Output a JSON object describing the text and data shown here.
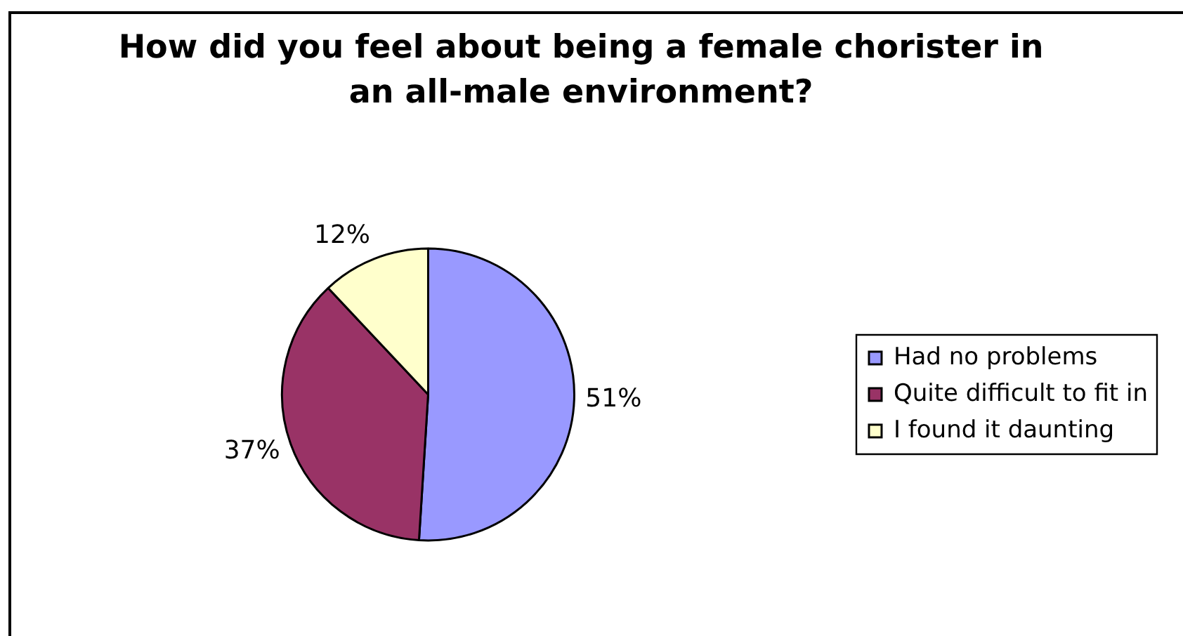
{
  "chart_data": {
    "type": "pie",
    "title": "How did you feel about being a female chorister in an all-male environment?",
    "categories": [
      "Had no problems",
      "Quite difficult to fit in",
      "I found it daunting"
    ],
    "values": [
      51,
      37,
      12
    ],
    "colors": [
      "#9999ff",
      "#993366",
      "#ffffcc"
    ],
    "value_labels": [
      "51%",
      "37%",
      "12%"
    ],
    "legend": "right"
  }
}
